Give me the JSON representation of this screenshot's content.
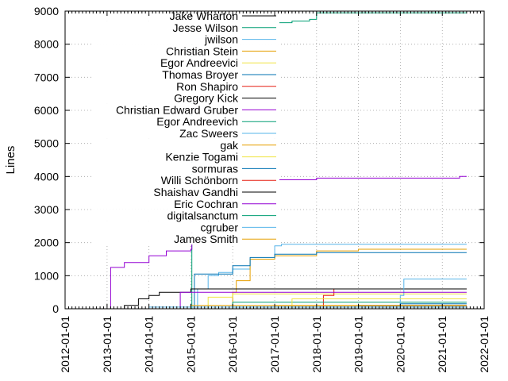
{
  "chart_data": {
    "type": "line",
    "title": "",
    "xlabel": "",
    "ylabel": "Lines",
    "xlim": [
      "2012-01-01",
      "2022-01-01"
    ],
    "ylim": [
      0,
      9000
    ],
    "x_ticks": [
      "2012-01-01",
      "2013-01-01",
      "2014-01-01",
      "2015-01-01",
      "2016-01-01",
      "2017-01-01",
      "2018-01-01",
      "2019-01-01",
      "2020-01-01",
      "2021-01-01",
      "2022-01-01"
    ],
    "y_ticks": [
      0,
      1000,
      2000,
      3000,
      4000,
      5000,
      6000,
      7000,
      8000,
      9000
    ],
    "grid": true,
    "legend": "inside top-left",
    "series": [
      {
        "name": "Jake Wharton",
        "color": "#000000",
        "points": [
          [
            "2014-12-20",
            0
          ],
          [
            "2021-08-01",
            0
          ]
        ]
      },
      {
        "name": "Jesse Wilson",
        "color": "#009e73",
        "points": [
          [
            "2013-03-01",
            0
          ],
          [
            "2014-12-20",
            0
          ],
          [
            "2015-01-10",
            8600
          ],
          [
            "2016-06-01",
            8650
          ],
          [
            "2017-06-01",
            8700
          ],
          [
            "2017-11-01",
            8750
          ],
          [
            "2018-01-01",
            8950
          ],
          [
            "2021-08-01",
            8950
          ]
        ]
      },
      {
        "name": "jwilson",
        "color": "#56b4e9",
        "points": [
          [
            "2015-02-01",
            0
          ],
          [
            "2015-03-01",
            600
          ],
          [
            "2015-06-01",
            1000
          ],
          [
            "2015-09-01",
            1100
          ],
          [
            "2016-01-01",
            1200
          ],
          [
            "2016-06-01",
            1500
          ],
          [
            "2017-01-01",
            1900
          ],
          [
            "2017-03-01",
            1950
          ],
          [
            "2021-08-01",
            1950
          ]
        ]
      },
      {
        "name": "Christian Stein",
        "color": "#e69f00",
        "points": [
          [
            "2015-12-01",
            0
          ],
          [
            "2016-01-01",
            500
          ],
          [
            "2016-02-01",
            850
          ],
          [
            "2016-06-01",
            1500
          ],
          [
            "2017-01-01",
            1600
          ],
          [
            "2018-01-01",
            1750
          ],
          [
            "2019-01-01",
            1800
          ],
          [
            "2021-08-01",
            1800
          ]
        ]
      },
      {
        "name": "Egor Andreevici",
        "color": "#f0e442",
        "points": [
          [
            "2015-03-01",
            0
          ],
          [
            "2015-06-01",
            350
          ],
          [
            "2016-01-01",
            450
          ],
          [
            "2021-08-01",
            450
          ]
        ]
      },
      {
        "name": "Thomas Broyer",
        "color": "#0072b2",
        "points": [
          [
            "2015-01-15",
            0
          ],
          [
            "2015-02-01",
            1050
          ],
          [
            "2016-01-01",
            1300
          ],
          [
            "2016-06-01",
            1550
          ],
          [
            "2017-01-01",
            1650
          ],
          [
            "2018-01-01",
            1700
          ],
          [
            "2021-08-01",
            1700
          ]
        ]
      },
      {
        "name": "Ron Shapiro",
        "color": "#e51e10",
        "points": [
          [
            "2017-06-01",
            0
          ],
          [
            "2018-03-01",
            400
          ],
          [
            "2018-06-01",
            600
          ],
          [
            "2021-08-01",
            600
          ]
        ]
      },
      {
        "name": "Gregory Kick",
        "color": "#000000",
        "points": [
          [
            "2013-04-01",
            0
          ],
          [
            "2013-06-01",
            100
          ],
          [
            "2013-10-01",
            300
          ],
          [
            "2014-01-01",
            400
          ],
          [
            "2014-04-01",
            500
          ],
          [
            "2015-01-01",
            600
          ],
          [
            "2021-08-01",
            600
          ]
        ]
      },
      {
        "name": "Christian Edward Gruber",
        "color": "#9400d3",
        "points": [
          [
            "2013-01-01",
            0
          ],
          [
            "2013-02-01",
            1250
          ],
          [
            "2013-06-01",
            1400
          ],
          [
            "2014-01-01",
            1600
          ],
          [
            "2014-06-01",
            1750
          ],
          [
            "2015-01-01",
            1800
          ],
          [
            "2015-01-10",
            3800
          ],
          [
            "2016-01-01",
            3900
          ],
          [
            "2018-01-01",
            3950
          ],
          [
            "2021-06-01",
            4000
          ],
          [
            "2021-08-01",
            4000
          ]
        ]
      },
      {
        "name": "Egor Andreevich",
        "color": "#009e73",
        "points": [
          [
            "2015-06-01",
            0
          ],
          [
            "2016-01-01",
            200
          ],
          [
            "2021-08-01",
            200
          ]
        ]
      },
      {
        "name": "Zac Sweers",
        "color": "#56b4e9",
        "points": [
          [
            "2019-06-01",
            0
          ],
          [
            "2020-01-01",
            400
          ],
          [
            "2020-02-01",
            900
          ],
          [
            "2021-08-01",
            900
          ]
        ]
      },
      {
        "name": "gak",
        "color": "#e69f00",
        "points": [
          [
            "2014-06-01",
            0
          ],
          [
            "2015-01-01",
            100
          ],
          [
            "2021-08-01",
            100
          ]
        ]
      },
      {
        "name": "Kenzie Togami",
        "color": "#f0e442",
        "points": [
          [
            "2017-01-01",
            0
          ],
          [
            "2017-06-01",
            300
          ],
          [
            "2021-08-01",
            300
          ]
        ]
      },
      {
        "name": "sormuras",
        "color": "#0072b2",
        "points": [
          [
            "2019-06-01",
            0
          ],
          [
            "2020-01-01",
            150
          ],
          [
            "2021-08-01",
            150
          ]
        ]
      },
      {
        "name": "Willi Schönborn",
        "color": "#e51e10",
        "points": [
          [
            "2016-01-01",
            0
          ],
          [
            "2016-06-01",
            50
          ],
          [
            "2021-08-01",
            50
          ]
        ]
      },
      {
        "name": "Shaishav Gandhi",
        "color": "#000000",
        "points": [
          [
            "2018-06-01",
            0
          ],
          [
            "2019-01-01",
            100
          ],
          [
            "2021-08-01",
            100
          ]
        ]
      },
      {
        "name": "Eric Cochran",
        "color": "#9400d3",
        "points": [
          [
            "2014-09-01",
            0
          ],
          [
            "2014-10-01",
            500
          ],
          [
            "2021-08-01",
            500
          ]
        ]
      },
      {
        "name": "digitalsanctum",
        "color": "#009e73",
        "points": [
          [
            "2015-06-01",
            0
          ],
          [
            "2016-01-01",
            50
          ],
          [
            "2021-08-01",
            50
          ]
        ]
      },
      {
        "name": "cgruber",
        "color": "#56b4e9",
        "points": [
          [
            "2013-06-01",
            0
          ],
          [
            "2014-01-01",
            50
          ],
          [
            "2021-08-01",
            50
          ]
        ]
      },
      {
        "name": "James Smith",
        "color": "#e69f00",
        "points": [
          [
            "2016-01-01",
            0
          ],
          [
            "2017-01-01",
            100
          ],
          [
            "2021-08-01",
            100
          ]
        ]
      }
    ]
  }
}
